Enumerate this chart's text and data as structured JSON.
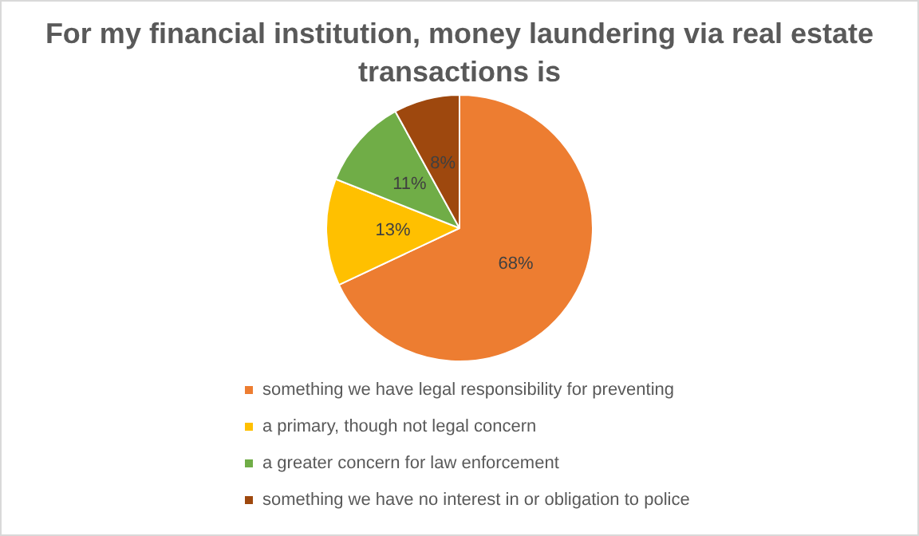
{
  "chart_data": {
    "type": "pie",
    "title": "For my financial institution, money laundering via real estate transactions is",
    "categories": [
      "something we have legal responsibility for preventing",
      "a primary, though not legal concern",
      "a greater concern for law enforcement",
      "something we have no interest in or obligation to police"
    ],
    "values": [
      68,
      13,
      11,
      8
    ],
    "colors": [
      "#ed7d31",
      "#ffc000",
      "#70ad47",
      "#9e480e"
    ],
    "value_labels": [
      "68%",
      "13%",
      "11%",
      "8%"
    ],
    "legend": "bottom"
  }
}
